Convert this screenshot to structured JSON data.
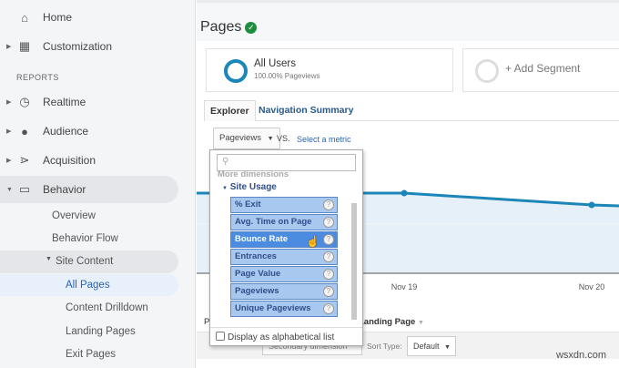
{
  "sidebar": {
    "home": "Home",
    "customization": "Customization",
    "reports_heading": "REPORTS",
    "realtime": "Realtime",
    "audience": "Audience",
    "acquisition": "Acquisition",
    "behavior": "Behavior",
    "behavior_items": {
      "overview": "Overview",
      "flow": "Behavior Flow",
      "site_content": "Site Content"
    },
    "site_content_items": [
      "All Pages",
      "Content Drilldown",
      "Landing Pages",
      "Exit Pages"
    ]
  },
  "header": {
    "title": "Pages"
  },
  "segments": {
    "name": "All Users",
    "sub": "100.00% Pageviews",
    "add": "+ Add Segment"
  },
  "tabs": [
    "Explorer",
    "Navigation Summary"
  ],
  "metric": {
    "selected": "Pageviews",
    "vs": "VS.",
    "select_metric": "Select a metric"
  },
  "metric_menu": {
    "search_placeholder": "",
    "more_dimensions": "More dimensions",
    "group": "Site Usage",
    "items": [
      "% Exit",
      "Avg. Time on Page",
      "Bounce Rate",
      "Entrances",
      "Page Value",
      "Pageviews",
      "Unique Pageviews"
    ],
    "highlighted": "Bounce Rate",
    "alphabetical_label": "Display as alphabetical list",
    "alphabetical_checked": false
  },
  "chart_data": {
    "type": "area",
    "categories": [
      "Nov 19",
      "Nov 20"
    ],
    "color": "#1c86b8"
  },
  "table_controls": {
    "primary_dim_partial": "Landing Page",
    "secondary_dimension": "Secondary dimension",
    "sort_type_label": "Sort Type:",
    "sort_type": "Default"
  },
  "watermark": "wsxdn.com"
}
